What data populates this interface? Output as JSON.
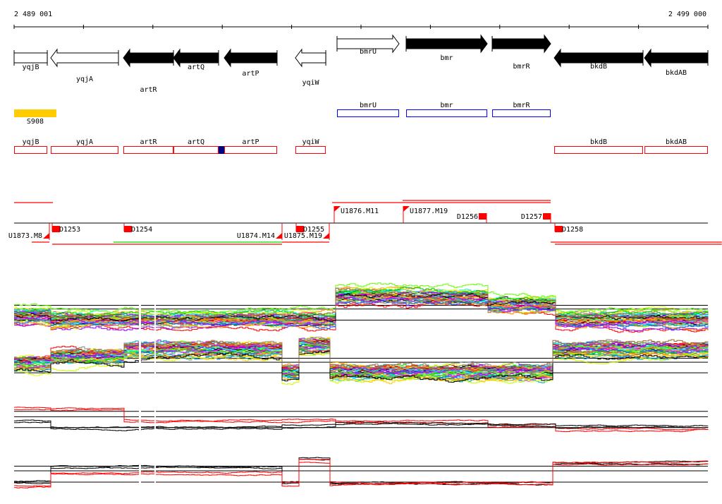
{
  "ruler": {
    "start_label": "2 489 001",
    "end_label": "2 499 000",
    "start": 2489001,
    "end": 2499000,
    "ticks": 10
  },
  "genes": [
    {
      "name": "yqjB",
      "start": 2489001,
      "end": 2489479,
      "strand": "none",
      "fill": "white",
      "row": "lower",
      "label_row": 1
    },
    {
      "name": "yqjA",
      "start": 2489529,
      "end": 2490505,
      "strand": "-",
      "fill": "white",
      "row": "lower",
      "label_row": 2
    },
    {
      "name": "artR",
      "start": 2490576,
      "end": 2491298,
      "strand": "-",
      "fill": "black",
      "row": "lower",
      "label_row": 3
    },
    {
      "name": "artQ",
      "start": 2491298,
      "end": 2491948,
      "strand": "-",
      "fill": "black",
      "row": "lower",
      "label_row": 1
    },
    {
      "name": "artP",
      "start": 2492029,
      "end": 2492791,
      "strand": "-",
      "fill": "black",
      "row": "lower",
      "label_row": 2
    },
    {
      "name": "yqiW",
      "start": 2493055,
      "end": 2493493,
      "strand": "-",
      "fill": "white",
      "row": "lower",
      "label_row": 3
    },
    {
      "name": "bmrU",
      "start": 2493655,
      "end": 2494549,
      "strand": "+",
      "fill": "white",
      "row": "upper",
      "label_row": 0
    },
    {
      "name": "bmr",
      "start": 2494651,
      "end": 2495820,
      "strand": "+",
      "fill": "black",
      "row": "upper",
      "label_row": 1
    },
    {
      "name": "bmrR",
      "start": 2495891,
      "end": 2496734,
      "strand": "+",
      "fill": "black",
      "row": "upper",
      "label_row": 2
    },
    {
      "name": "bkdB",
      "start": 2496785,
      "end": 2498065,
      "strand": "-",
      "fill": "black",
      "row": "lower",
      "label_row": 1
    },
    {
      "name": "bkdAB",
      "start": 2498086,
      "end": 2499000,
      "strand": "-",
      "fill": "black",
      "row": "lower",
      "label_row": 2
    }
  ],
  "regulatory": [
    {
      "name": "S908",
      "start": 2489001,
      "end": 2489610,
      "color": "#ffcc00"
    }
  ],
  "blue_boxes": [
    {
      "name": "bmrU",
      "start": 2493655,
      "end": 2494549
    },
    {
      "name": "bmr",
      "start": 2494651,
      "end": 2495820
    },
    {
      "name": "bmrR",
      "start": 2495891,
      "end": 2496734
    }
  ],
  "red_boxes": [
    {
      "name": "yqjB",
      "start": 2489001,
      "end": 2489479
    },
    {
      "name": "yqjA",
      "start": 2489529,
      "end": 2490505
    },
    {
      "name": "artR",
      "start": 2490576,
      "end": 2491298
    },
    {
      "name": "artQ",
      "start": 2491298,
      "end": 2491948
    },
    {
      "name": "artP",
      "start": 2492029,
      "end": 2492791
    },
    {
      "name": "yqiW",
      "start": 2493055,
      "end": 2493493
    },
    {
      "name": "bkdB",
      "start": 2496785,
      "end": 2498065
    },
    {
      "name": "bkdAB",
      "start": 2498086,
      "end": 2499000
    }
  ],
  "marker": {
    "start": 2491948,
    "end": 2492029,
    "color": "#000080"
  },
  "features": [
    {
      "type": "up",
      "name": "U1873.M8",
      "pos": 2489509,
      "strand": "-"
    },
    {
      "type": "down",
      "name": "D1253",
      "pos": 2489550,
      "strand": "-"
    },
    {
      "type": "down",
      "name": "D1254",
      "pos": 2490586,
      "strand": "-"
    },
    {
      "type": "up",
      "name": "U1874.M14",
      "pos": 2492862,
      "strand": "-"
    },
    {
      "type": "down",
      "name": "D1255",
      "pos": 2493066,
      "strand": "-"
    },
    {
      "type": "up",
      "name": "U1875.M19",
      "pos": 2493543,
      "strand": "-"
    },
    {
      "type": "up",
      "name": "U1876.M11",
      "pos": 2493614,
      "strand": "+"
    },
    {
      "type": "up",
      "name": "U1877.M19",
      "pos": 2494610,
      "strand": "+"
    },
    {
      "type": "down",
      "name": "D1256",
      "pos": 2495810,
      "strand": "+"
    },
    {
      "type": "down",
      "name": "D1257",
      "pos": 2496734,
      "strand": "+"
    },
    {
      "type": "down",
      "name": "D1258",
      "pos": 2496795,
      "strand": "-"
    }
  ],
  "segments": [
    {
      "strand": "+",
      "start": 2489001,
      "end": 2489560,
      "color": "#ff0000",
      "lane": 0
    },
    {
      "strand": "+",
      "start": 2493584,
      "end": 2496734,
      "color": "#ff0000",
      "lane": 0
    },
    {
      "strand": "+",
      "start": 2494600,
      "end": 2496734,
      "color": "#ff0000",
      "lane": 1
    },
    {
      "strand": "-",
      "start": 2489255,
      "end": 2489509,
      "color": "#ff0000",
      "lane": 0
    },
    {
      "strand": "-",
      "start": 2490434,
      "end": 2492862,
      "color": "#00dd00",
      "lane": 0
    },
    {
      "strand": "-",
      "start": 2489550,
      "end": 2492862,
      "color": "#ff0000",
      "lane": 1
    },
    {
      "strand": "-",
      "start": 2492862,
      "end": 2493543,
      "color": "#ff0000",
      "lane": 0
    },
    {
      "strand": "-",
      "start": 2496734,
      "end": 2499200,
      "color": "#ff0000",
      "lane": 0
    },
    {
      "strand": "-",
      "start": 2496795,
      "end": 2499200,
      "color": "#ff0000",
      "lane": 1
    }
  ],
  "chart_data": [
    {
      "type": "line",
      "title": "",
      "ylim": [
        -2,
        2
      ],
      "refs": [
        0.2,
        -0.1,
        -1.0
      ],
      "multicolor": true,
      "nseries": 40,
      "breaks": [
        2489001,
        2489529,
        2492862,
        2493625,
        2494641,
        2495810,
        2496785,
        2499000
      ],
      "levels": [
        -0.6,
        -0.9,
        -0.9,
        1.0,
        0.9,
        0.3,
        -0.9
      ]
    },
    {
      "type": "line",
      "title": "",
      "ylim": [
        -2,
        2
      ],
      "refs": [
        0.0,
        -0.3,
        -1.1
      ],
      "multicolor": true,
      "nseries": 40,
      "breaks": [
        2489001,
        2489529,
        2490576,
        2492842,
        2493066,
        2493523,
        2496734,
        2499000
      ],
      "levels": [
        -0.4,
        0.1,
        0.6,
        -1.1,
        0.9,
        -1.1,
        0.6
      ]
    },
    {
      "type": "line",
      "title": "",
      "ylim": [
        -2,
        2
      ],
      "refs": [
        1.3,
        0.6,
        -0.8
      ],
      "multicolor": false,
      "breaks": [
        2489001,
        2489529,
        2490546,
        2492862,
        2493625,
        2495810,
        2496785,
        2499000
      ],
      "series": [
        {
          "name": "red",
          "color": "#ff0000",
          "levels": [
            1.7,
            1.6,
            0.1,
            0.2,
            0.0,
            -0.5,
            -1.0
          ]
        },
        {
          "name": "black",
          "color": "#000000",
          "levels": [
            0.0,
            -0.8,
            -0.8,
            -0.6,
            -0.3,
            -0.4,
            -0.6
          ]
        }
      ]
    },
    {
      "type": "line",
      "title": "",
      "ylim": [
        -2,
        2
      ],
      "refs": [
        0.6,
        0.0,
        -1.45
      ],
      "multicolor": false,
      "breaks": [
        2489001,
        2489529,
        2492842,
        2493066,
        2493523,
        2496734,
        2499000
      ],
      "series": [
        {
          "name": "black",
          "color": "#000000",
          "levels": [
            -1.4,
            0.5,
            -1.5,
            1.6,
            -1.6,
            1.0
          ]
        },
        {
          "name": "red",
          "color": "#ff0000",
          "levels": [
            -2.0,
            -0.3,
            -1.7,
            1.3,
            -1.6,
            1.0
          ]
        }
      ]
    }
  ]
}
